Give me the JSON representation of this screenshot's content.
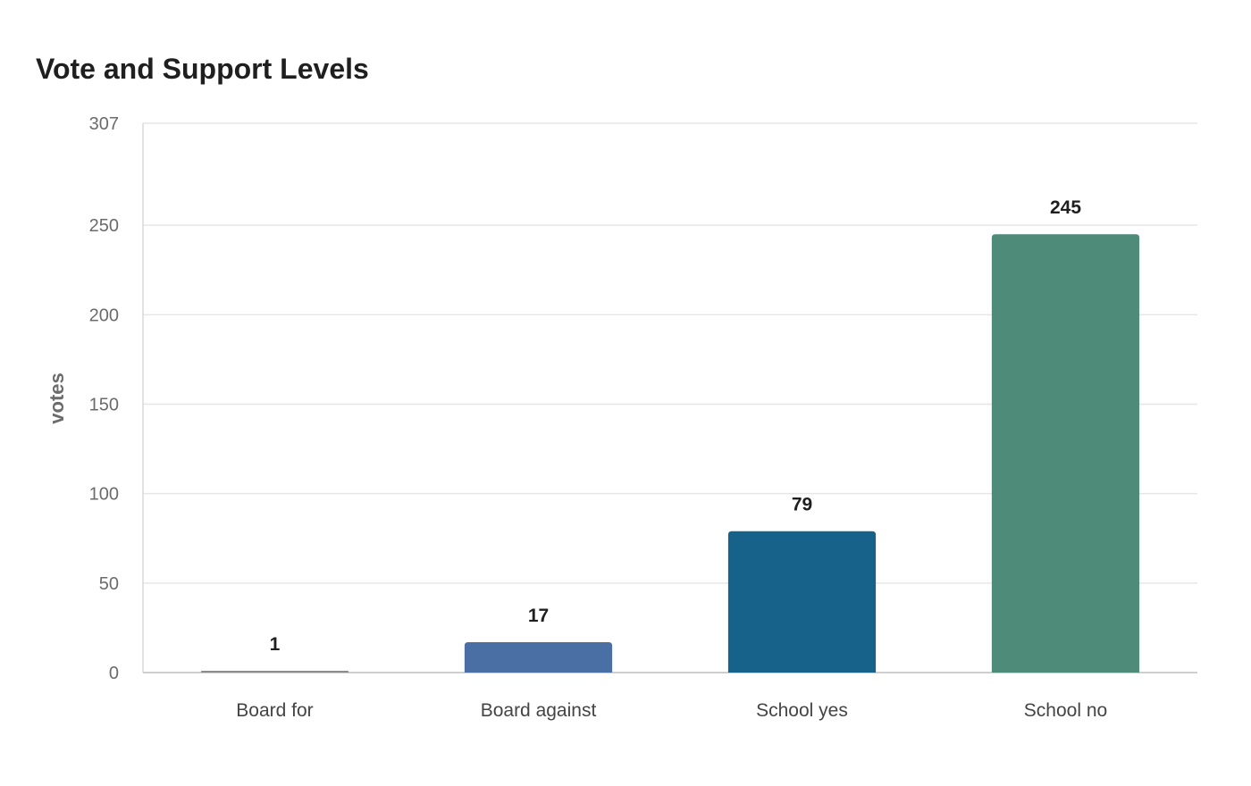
{
  "chart_data": {
    "type": "bar",
    "title": "Vote and Support Levels",
    "xlabel": "",
    "ylabel": "votes",
    "categories": [
      "Board for",
      "Board against",
      "School yes",
      "School no"
    ],
    "values": [
      1,
      17,
      79,
      245
    ],
    "value_labels": [
      "1",
      "17",
      "79",
      "245"
    ],
    "colors": [
      "#8c8c8c",
      "#4a6fa5",
      "#17628a",
      "#4e8b79"
    ],
    "ylim": [
      0,
      307
    ],
    "yticks": [
      0,
      50,
      100,
      150,
      200,
      250,
      307
    ],
    "ytick_labels": [
      "0",
      "50",
      "100",
      "150",
      "200",
      "250",
      "307"
    ],
    "grid": true,
    "legend": "none"
  }
}
